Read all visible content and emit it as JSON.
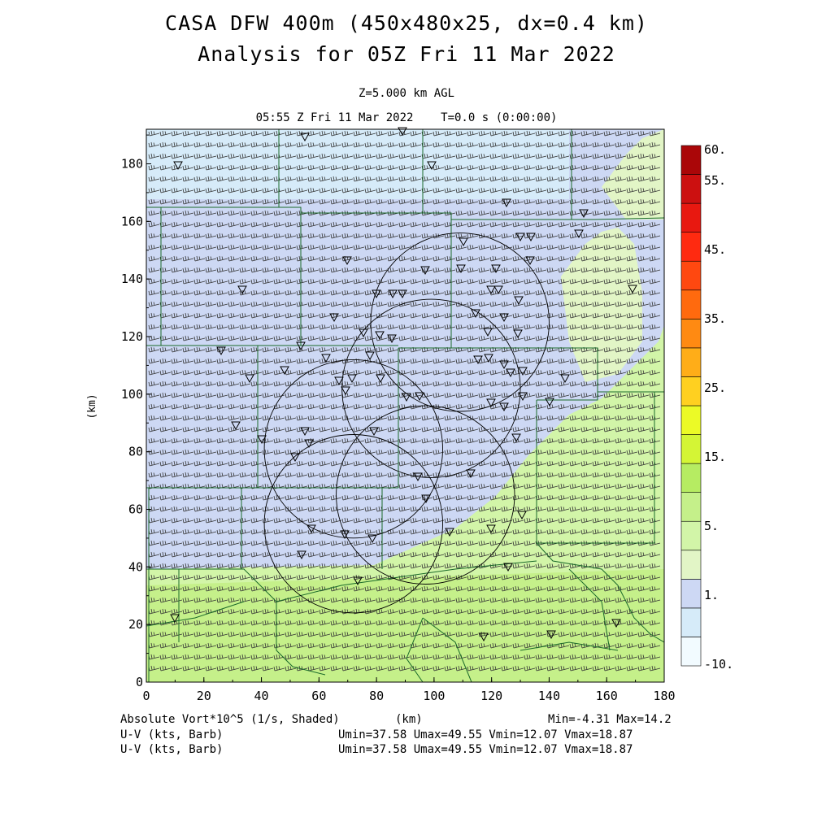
{
  "title": {
    "line1": "CASA DFW 400m (450x480x25, dx=0.4 km)",
    "line2": "Analysis for 05Z Fri 11 Mar 2022",
    "level": "Z=5.000 km AGL",
    "time": "05:55 Z Fri 11 Mar 2022    T=0.0 s (0:00:00)"
  },
  "footer": {
    "field_label": "Absolute Vort*10^5 (1/s, Shaded)",
    "xunit": "(km)",
    "minmax": "Min=-4.31 Max=14.2",
    "barb1_label": "U-V (kts, Barb)",
    "barb1_stats": "Umin=37.58 Umax=49.55 Vmin=12.07 Vmax=18.87",
    "barb2_label": "U-V (kts, Barb)",
    "barb2_stats": "Umin=37.58 Umax=49.55 Vmin=12.07 Vmax=18.87"
  },
  "chart_data": {
    "type": "heatmap",
    "xlabel": "(km)",
    "ylabel": "(km)",
    "xlim": [
      0,
      180
    ],
    "ylim": [
      0,
      192
    ],
    "xticks": [
      "0",
      "20",
      "40",
      "60",
      "80",
      "100",
      "120",
      "140",
      "160",
      "180"
    ],
    "yticks": [
      "0",
      "20",
      "40",
      "60",
      "80",
      "100",
      "120",
      "140",
      "160",
      "180"
    ],
    "field": "Absolute Vort*10^5 (1/s)",
    "min": -4.31,
    "max": 14.2,
    "colorbar": {
      "labels": [
        "60.",
        "55.",
        "45.",
        "35.",
        "25.",
        "15.",
        "5.",
        "1.",
        "-10."
      ],
      "colors": [
        "#f2fbff",
        "#d6ebf9",
        "#cdd8f4",
        "#e2f5c6",
        "#d2f5a8",
        "#c5f08a",
        "#b6ec62",
        "#d4f535",
        "#ecfa26",
        "#ffd020",
        "#ffad18",
        "#ff8a12",
        "#ff6a0e",
        "#ff4810",
        "#ff2a10",
        "#e81810",
        "#cc1010",
        "#aa0608"
      ]
    },
    "wind": {
      "umin": 37.58,
      "umax": 49.55,
      "vmin": 12.07,
      "vmax": 18.87,
      "units": "kts"
    },
    "radar_rings": [
      {
        "cx": 72,
        "cy": 55,
        "r": 31
      },
      {
        "cx": 72,
        "cy": 81,
        "r": 31
      },
      {
        "cx": 97,
        "cy": 65,
        "r": 31
      },
      {
        "cx": 99,
        "cy": 102,
        "r": 31
      },
      {
        "cx": 109,
        "cy": 125,
        "r": 31
      }
    ]
  }
}
